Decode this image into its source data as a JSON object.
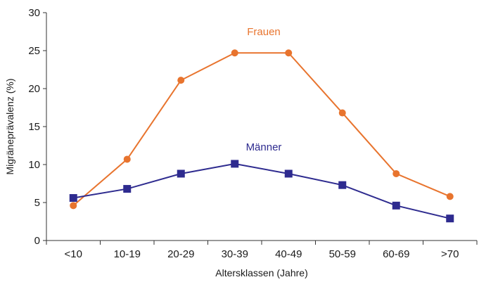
{
  "chart_data": {
    "type": "line",
    "title": "",
    "xlabel": "Altersklassen (Jahre)",
    "ylabel": "Migräneprävalenz (%)",
    "categories": [
      "<10",
      "10-19",
      "20-29",
      "30-39",
      "40-49",
      "50-59",
      "60-69",
      ">70"
    ],
    "ylim": [
      0,
      30
    ],
    "yticks": [
      "0",
      "5",
      "10",
      "15",
      "20",
      "25",
      "30"
    ],
    "grid": false,
    "legend": "inline labels",
    "series": [
      {
        "name": "Frauen",
        "color": "#e8742e",
        "marker": "circle",
        "values": [
          4.6,
          10.7,
          21.1,
          24.7,
          24.7,
          16.8,
          8.8,
          5.8
        ]
      },
      {
        "name": "Männer",
        "color": "#2e2b8f",
        "marker": "square",
        "values": [
          5.6,
          6.8,
          8.8,
          10.1,
          8.8,
          7.3,
          4.6,
          2.9
        ]
      }
    ]
  }
}
